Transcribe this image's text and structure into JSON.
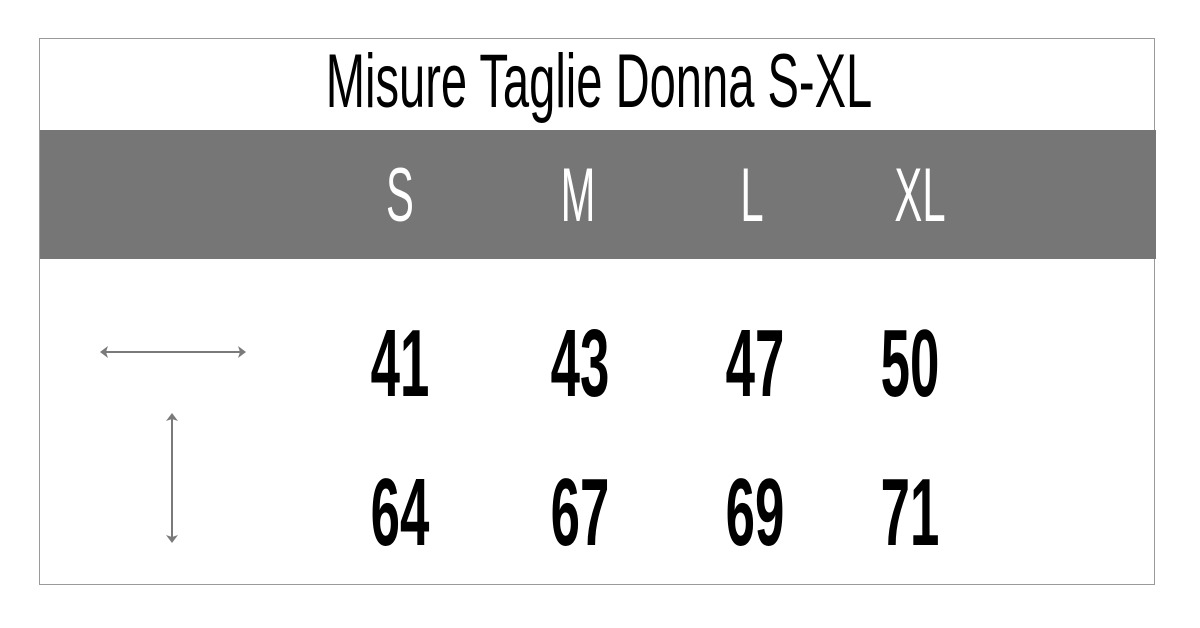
{
  "title": "Misure Taglie Donna S-XL",
  "sizes": [
    "S",
    "M",
    "L",
    "XL"
  ],
  "rows": [
    {
      "icon": "horizontal-double-arrow-icon",
      "values": [
        "41",
        "43",
        "47",
        "50"
      ]
    },
    {
      "icon": "vertical-double-arrow-icon",
      "values": [
        "64",
        "67",
        "69",
        "71"
      ]
    }
  ],
  "colors": {
    "header_band": "#767676",
    "arrow": "#7a7a7a",
    "border": "#9a9a9a"
  }
}
